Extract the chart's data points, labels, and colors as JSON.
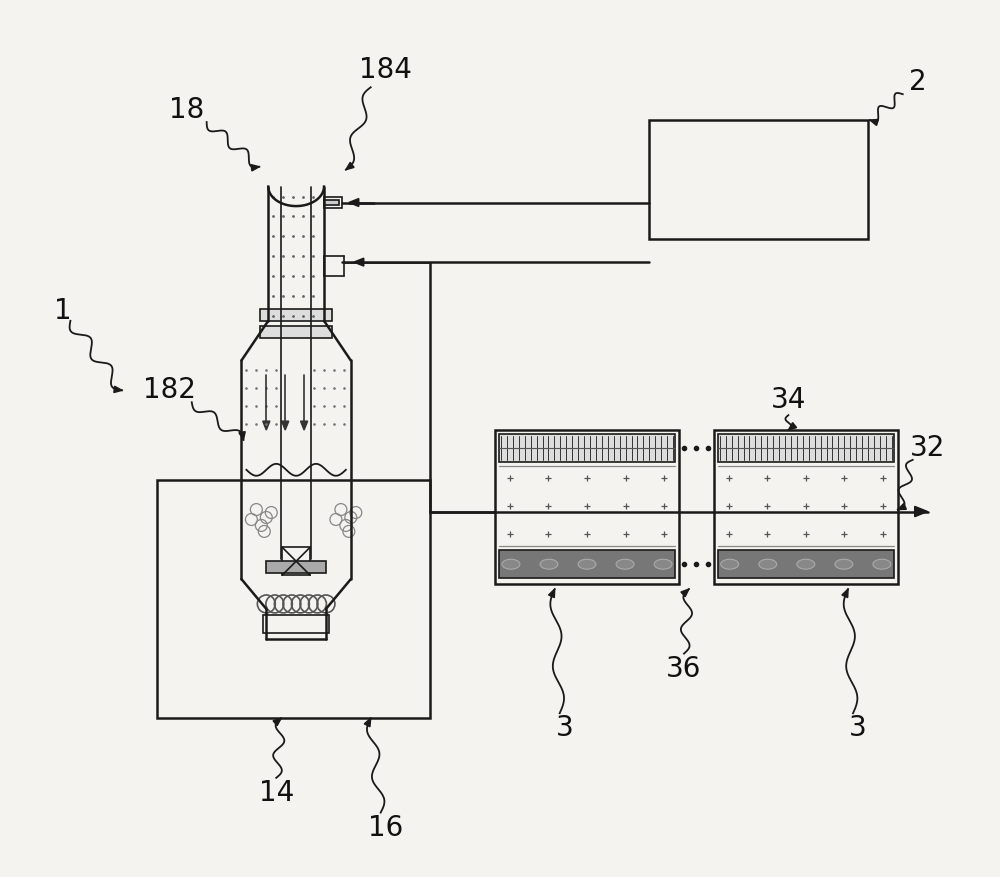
{
  "bg_color": "#f5f3f0",
  "line_color": "#1a1a1a",
  "fig_width": 10.0,
  "fig_height": 8.77,
  "dpi": 100
}
